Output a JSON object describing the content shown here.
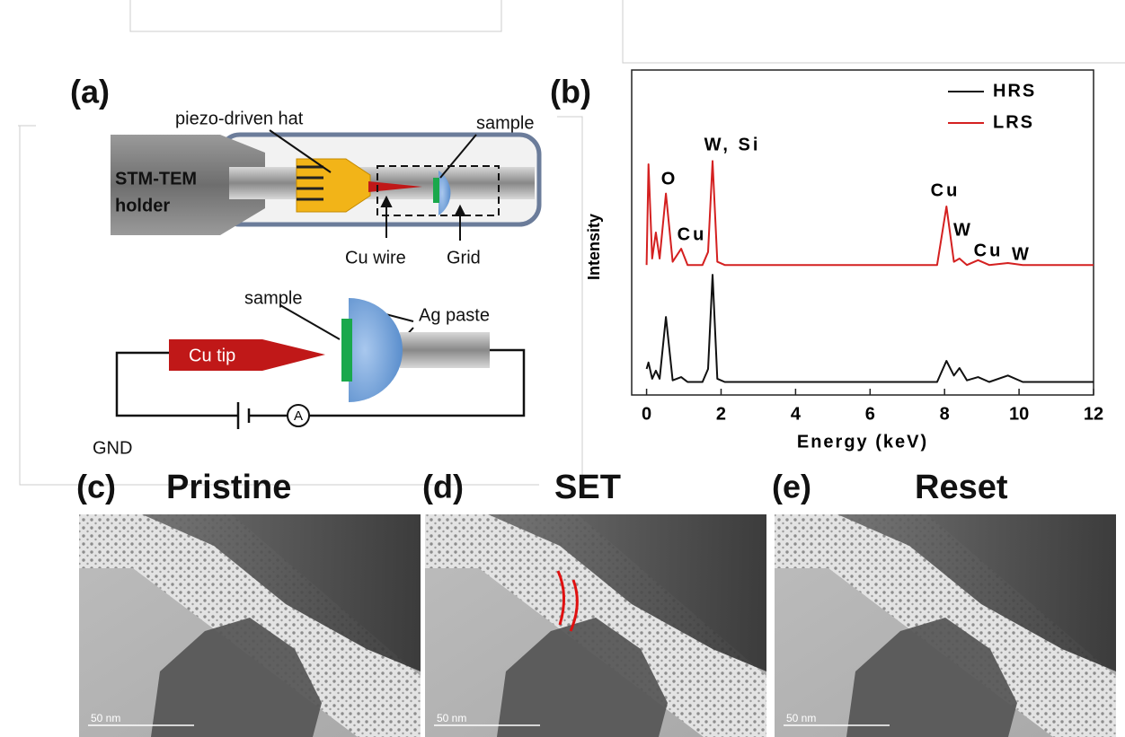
{
  "panel_a": {
    "label": "(a)",
    "holder_labels": [
      "STM-TEM",
      "holder"
    ],
    "piezo": "piezo-driven hat",
    "sample_top": "sample",
    "cu_wire": "Cu wire",
    "grid": "Grid",
    "sample_bottom": "sample",
    "ag_paste": "Ag paste",
    "cu_tip": "Cu tip",
    "ammeter": "A",
    "gnd": "GND"
  },
  "chart_data": {
    "type": "line",
    "panel_label": "(b)",
    "x_label": "Energy (keV)",
    "y_label": "Intensity",
    "x": [
      0,
      0.05,
      0.15,
      0.25,
      0.35,
      0.52,
      0.7,
      0.93,
      1.1,
      1.5,
      1.65,
      1.77,
      1.9,
      2.1,
      4,
      6,
      7.8,
      8.05,
      8.25,
      8.4,
      8.6,
      8.9,
      9.2,
      9.7,
      10.1,
      12
    ],
    "series": [
      {
        "name": "HRS",
        "color": "#111111",
        "values": [
          8,
          10,
          5,
          7.5,
          5,
          24,
          4.5,
          5.5,
          4,
          4,
          8,
          37,
          5,
          4,
          4,
          4,
          4,
          10.5,
          6,
          8.3,
          4.5,
          5.5,
          4,
          6,
          4,
          4
        ]
      },
      {
        "name": "LRS",
        "color": "#d42020",
        "values": [
          40,
          71,
          42,
          50,
          42,
          62,
          41,
          45,
          40,
          40,
          44,
          72,
          41,
          40,
          40,
          40,
          40,
          58,
          41,
          42,
          40,
          41.5,
          40,
          40.6,
          40,
          40
        ]
      }
    ],
    "annotations": [
      "O",
      "Cu",
      "W, Si",
      "Cu",
      "W",
      "Cu",
      "W"
    ],
    "xlim": [
      -0.4,
      12
    ],
    "xticks": [
      0,
      2,
      4,
      6,
      8,
      10,
      12
    ],
    "ylim": [
      0,
      100
    ],
    "legend": "upper-right"
  },
  "tem_panels": [
    {
      "label": "(c)",
      "title": "Pristine",
      "scale_bar": "50 nm"
    },
    {
      "label": "(d)",
      "title": "SET",
      "scale_bar": "50 nm"
    },
    {
      "label": "(e)",
      "title": "Reset",
      "scale_bar": "50 nm"
    }
  ]
}
